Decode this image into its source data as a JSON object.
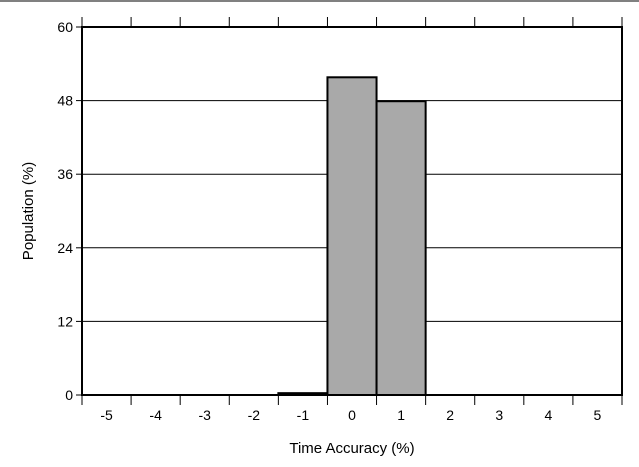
{
  "chart_data": {
    "type": "bar",
    "title": "",
    "xlabel": "Time Accuracy (%)",
    "ylabel": "Population (%)",
    "categories": [
      "-5",
      "-4",
      "-3",
      "-2",
      "-1",
      "0",
      "1",
      "2",
      "3",
      "4",
      "5"
    ],
    "values": [
      0,
      0,
      0,
      0,
      0.3,
      51.8,
      47.9,
      0,
      0,
      0,
      0
    ],
    "ylim": [
      0,
      60
    ],
    "yticks": [
      "0",
      "12",
      "24",
      "36",
      "48",
      "60"
    ],
    "grid": "horizontal",
    "legend": "none",
    "colors": {
      "bar_fill": "#a9a9a9",
      "bar_stroke": "#000000",
      "grid": "#000000",
      "frame": "#000000",
      "top_rule": "#808080"
    }
  }
}
